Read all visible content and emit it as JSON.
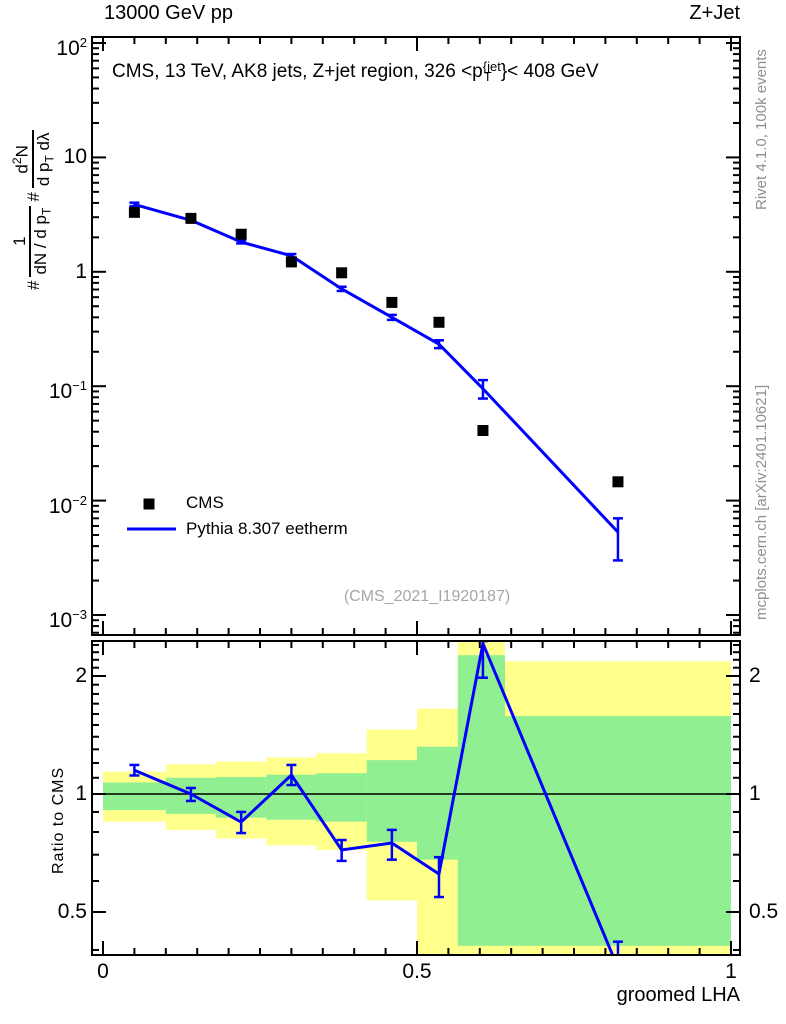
{
  "header": {
    "top_left": "13000 GeV pp",
    "top_right": "Z+Jet"
  },
  "panel_title": {
    "prefix": "CMS, 13 TeV, AK8 jets, Z+jet region, 326 <p",
    "sup": "{jet",
    "sub": "T",
    "suffix": "}< 408 GeV"
  },
  "watermark": "(CMS_2021_I1920187)",
  "side_notes": {
    "top": "Rivet 4.1.0,  100k events",
    "bottom": "mcplots.cern.ch [arXiv:2401.10621]"
  },
  "legend": [
    {
      "label": "CMS",
      "marker": "square",
      "color": "#000000"
    },
    {
      "label": "Pythia 8.307 eetherm",
      "marker": "line",
      "color": "#0000ff"
    }
  ],
  "colors": {
    "mc": "#0000ff",
    "data": "#000000",
    "band_outer": "#ffff8c",
    "band_inner": "#90ef90",
    "gray_text": "#8f8f8f",
    "watermark": "#a6a6a6",
    "frame": "#000000"
  },
  "axes": {
    "x": {
      "title": "groomed LHA",
      "range": [
        0,
        1
      ],
      "minor_step": 0.05,
      "majors": [
        {
          "v": 0,
          "label": "0"
        },
        {
          "v": 0.5,
          "label": "0.5"
        },
        {
          "v": 1,
          "label": "1"
        }
      ]
    },
    "y_main": {
      "label_parts": {
        "hash1": "#",
        "f1_num": "1",
        "f1_den_pre": "dN / d p",
        "f1_den_sub": "T",
        "hash2": "#",
        "f2_num_pre": "d",
        "f2_num_sup": "2",
        "f2_num_post": "N",
        "f2_den_pre": "d p",
        "f2_den_sub": "T",
        "f2_den_post": " dλ"
      },
      "majors": [
        {
          "v": 100,
          "base": "10",
          "exp": "2"
        },
        {
          "v": 10,
          "base": "10",
          "exp": ""
        },
        {
          "v": 1,
          "base": "1",
          "exp": ""
        },
        {
          "v": 0.1,
          "base": "10",
          "exp": "−1"
        },
        {
          "v": 0.01,
          "base": "10",
          "exp": "−2"
        },
        {
          "v": 0.001,
          "base": "10",
          "exp": "−3"
        }
      ]
    },
    "y_ratio": {
      "label": "Ratio to CMS",
      "majors": [
        {
          "v": 2,
          "label": "2"
        },
        {
          "v": 1,
          "label": "1"
        },
        {
          "v": 0.5,
          "label": "0.5"
        }
      ]
    }
  },
  "chart_data": [
    {
      "id": "main",
      "type": "line",
      "yscale": "log",
      "xlim": [
        0,
        1
      ],
      "ylim": [
        0.00067,
        112.8
      ],
      "title": "CMS, 13 TeV, AK8 jets, Z+jet region, 326 < pT{jet} < 408 GeV",
      "x": [
        0.05,
        0.14,
        0.22,
        0.3,
        0.38,
        0.46,
        0.535,
        0.605,
        0.82
      ],
      "series": [
        {
          "name": "CMS",
          "style": "squares",
          "y": [
            3.31,
            2.93,
            2.13,
            1.22,
            0.98,
            0.54,
            0.362,
            0.041,
            0.0146
          ]
        },
        {
          "name": "Pythia 8.307 eetherm",
          "style": "line_err",
          "y": [
            3.88,
            2.82,
            1.82,
            1.38,
            0.71,
            0.4,
            0.233,
            0.095,
            0.0053
          ],
          "y_lo": [
            3.75,
            2.74,
            1.77,
            1.33,
            0.68,
            0.38,
            0.215,
            0.078,
            0.003
          ],
          "y_hi": [
            4.02,
            2.9,
            1.88,
            1.43,
            0.74,
            0.42,
            0.252,
            0.113,
            0.007
          ]
        }
      ]
    },
    {
      "id": "ratio",
      "type": "ratio",
      "yscale": "log",
      "ylim": [
        0.389,
        2.456
      ],
      "baseline": 1,
      "ylabel": "Ratio to CMS",
      "xlabel": "groomed LHA",
      "x": [
        0.05,
        0.14,
        0.22,
        0.3,
        0.38,
        0.46,
        0.535,
        0.605,
        0.82
      ],
      "ratio": {
        "y": [
          1.15,
          1.0,
          0.848,
          1.118,
          0.72,
          0.75,
          0.625,
          2.42,
          0.36
        ],
        "y_lo": [
          1.115,
          0.96,
          0.795,
          1.054,
          0.675,
          0.68,
          0.546,
          1.98,
          0.3
        ],
        "y_hi": [
          1.186,
          1.036,
          0.9,
          1.186,
          0.763,
          0.81,
          0.69,
          2.456,
          0.42
        ]
      },
      "bands": {
        "edges": [
          0,
          0.1,
          0.18,
          0.26,
          0.34,
          0.42,
          0.5,
          0.565,
          0.64,
          1.0
        ],
        "outer_lo": [
          0.85,
          0.81,
          0.77,
          0.74,
          0.72,
          0.535,
          0.389,
          0.389,
          0.389
        ],
        "outer_hi": [
          1.14,
          1.19,
          1.21,
          1.24,
          1.27,
          1.46,
          1.65,
          2.456,
          2.18
        ],
        "inner_lo": [
          0.91,
          0.89,
          0.87,
          0.86,
          0.85,
          0.755,
          0.68,
          0.41,
          0.41
        ],
        "inner_hi": [
          1.07,
          1.1,
          1.105,
          1.12,
          1.13,
          1.22,
          1.32,
          2.26,
          1.58
        ]
      }
    }
  ]
}
